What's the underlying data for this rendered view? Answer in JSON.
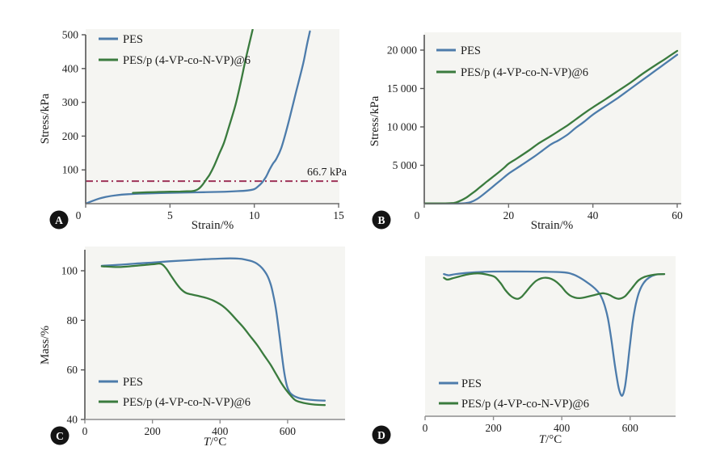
{
  "figure": {
    "background": "#ffffff",
    "panel_labels": [
      "A",
      "B",
      "C",
      "D"
    ]
  },
  "colors": {
    "pes_line": "#4d7cab",
    "composite_line": "#3a7b3e",
    "annotation_line": "#9e3358",
    "axis_dark": "#555555",
    "axis_light": "#8f8f8f",
    "text": "#1c1c1c",
    "plot_background": "#f5f5f2",
    "badge_background": "#141414",
    "badge_text": "#ffffff"
  },
  "legend_labels": {
    "pes": "PES",
    "composite": "PES/p (4-VP-co-N-VP)@6"
  },
  "chart_data": [
    {
      "type": "line",
      "panel_label": "A",
      "xlabel": "Strain/%",
      "ylabel": "Stress/kPa",
      "xlim": [
        0,
        15
      ],
      "ylim": [
        0,
        500
      ],
      "xticks": [
        0,
        5,
        10,
        15
      ],
      "xtick_labels": [
        "0",
        "5",
        "10",
        "15"
      ],
      "yticks": [
        100,
        200,
        300,
        400,
        500
      ],
      "ytick_labels": [
        "100",
        "200",
        "300",
        "400",
        "500"
      ],
      "legend_position": "top-left",
      "grid": false,
      "annotation": {
        "type": "hline",
        "y": 66.7,
        "label": "66.7 kPa",
        "style": "dash-dot"
      },
      "series": [
        {
          "name": "PES",
          "color": "#4d7cab",
          "x": [
            0,
            0.4,
            0.8,
            1.2,
            1.8,
            2.5,
            3.5,
            5,
            6.5,
            8,
            9,
            9.6,
            10,
            10.2,
            10.45,
            10.7,
            10.9,
            11.1,
            11.3,
            11.6,
            12,
            12.5,
            12.9,
            13.1,
            13.3
          ],
          "y": [
            0,
            8,
            15,
            20,
            25,
            28,
            30,
            32,
            33.5,
            35,
            37,
            39,
            43,
            50,
            62,
            80,
            100,
            118,
            132,
            165,
            235,
            335,
            415,
            465,
            510
          ]
        },
        {
          "name": "PES/p (4-VP-co-N-VP)@6",
          "color": "#3a7b3e",
          "x": [
            2.8,
            3.5,
            4.2,
            5,
            5.6,
            6,
            6.3,
            6.5,
            6.7,
            6.9,
            7.1,
            7.35,
            7.6,
            7.9,
            8.2,
            8.5,
            8.9,
            9.2,
            9.5,
            9.9
          ],
          "y": [
            32,
            33.5,
            34.5,
            35.5,
            36,
            36.5,
            37,
            39,
            44,
            54,
            68,
            86,
            110,
            145,
            180,
            228,
            295,
            360,
            430,
            515
          ]
        }
      ]
    },
    {
      "type": "line",
      "panel_label": "B",
      "xlabel": "Strain/%",
      "ylabel": "Stress/kPa",
      "xlim": [
        0,
        60
      ],
      "ylim": [
        0,
        20000
      ],
      "xticks": [
        0,
        20,
        40,
        60
      ],
      "xtick_labels": [
        "0",
        "20",
        "40",
        "60"
      ],
      "yticks": [
        5000,
        10000,
        15000,
        20000
      ],
      "ytick_labels": [
        "5 000",
        "10 000",
        "15 000",
        "20 000"
      ],
      "legend_position": "top-left",
      "grid": false,
      "series": [
        {
          "name": "PES",
          "color": "#4d7cab",
          "x": [
            0,
            8,
            10,
            11,
            12.5,
            14,
            16,
            18,
            20,
            23,
            26,
            28,
            30,
            32,
            34,
            36,
            38,
            40,
            43,
            46,
            49,
            52,
            55,
            57,
            60
          ],
          "y": [
            20,
            20,
            80,
            200,
            600,
            1200,
            2100,
            3000,
            3900,
            5000,
            6100,
            6900,
            7700,
            8300,
            9000,
            9900,
            10700,
            11600,
            12700,
            13800,
            15000,
            16200,
            17400,
            18200,
            19400
          ]
        },
        {
          "name": "PES/p (4-VP-co-N-VP)@6",
          "color": "#3a7b3e",
          "x": [
            0,
            5,
            7,
            8,
            9,
            10,
            11,
            12,
            13,
            14,
            15,
            17,
            19,
            20,
            22,
            25,
            27,
            30,
            32,
            34,
            36,
            38,
            40,
            43,
            46,
            49,
            52,
            55,
            57,
            60
          ],
          "y": [
            30,
            40,
            100,
            250,
            500,
            800,
            1200,
            1600,
            2050,
            2500,
            2950,
            3800,
            4700,
            5200,
            5900,
            7000,
            7800,
            8800,
            9500,
            10200,
            11000,
            11800,
            12550,
            13600,
            14700,
            15800,
            17000,
            18100,
            18800,
            19900
          ]
        }
      ]
    },
    {
      "type": "line",
      "panel_label": "C",
      "xlabel": "T/°C",
      "ylabel": "Mass/%",
      "xlim": [
        0,
        770
      ],
      "ylim": [
        40,
        100
      ],
      "xticks": [
        0,
        200,
        400,
        600
      ],
      "xtick_labels": [
        "0",
        "200",
        "400",
        "600"
      ],
      "yticks": [
        40,
        60,
        80,
        100
      ],
      "ytick_labels": [
        "40",
        "60",
        "80",
        "100"
      ],
      "legend_position": "bottom-left",
      "grid": false,
      "series": [
        {
          "name": "PES",
          "color": "#4d7cab",
          "x": [
            50,
            100,
            150,
            200,
            250,
            300,
            350,
            400,
            430,
            455,
            475,
            495,
            510,
            525,
            540,
            550,
            558,
            566,
            574,
            582,
            590,
            598,
            606,
            615,
            630,
            650,
            680,
            710
          ],
          "y": [
            102,
            102.4,
            102.9,
            103.3,
            103.8,
            104.2,
            104.6,
            104.9,
            105,
            104.9,
            104.5,
            103.8,
            102.8,
            101,
            98,
            94.5,
            90,
            84,
            76,
            67,
            59,
            53.5,
            51,
            49.8,
            48.8,
            48.2,
            47.8,
            47.6
          ]
        },
        {
          "name": "PES/p (4-VP-co-N-VP)@6",
          "color": "#3a7b3e",
          "x": [
            50,
            100,
            150,
            200,
            225,
            240,
            255,
            270,
            285,
            300,
            320,
            340,
            360,
            380,
            400,
            415,
            430,
            450,
            470,
            490,
            510,
            530,
            550,
            565,
            580,
            595,
            610,
            625,
            650,
            680,
            710
          ],
          "y": [
            101.8,
            101.5,
            102,
            102.6,
            102.8,
            101,
            98,
            95,
            92.5,
            91,
            90.3,
            89.7,
            89,
            88,
            86.5,
            85,
            83,
            80,
            77,
            73.5,
            70,
            66,
            62,
            58.5,
            55,
            52,
            49.5,
            47.6,
            46.6,
            46,
            45.8
          ]
        }
      ]
    },
    {
      "type": "line",
      "panel_label": "D",
      "xlabel": "T/°C",
      "ylabel": "",
      "note": "derivative mass loss (DTG), arbitrary units, baseline 0, PES main peak normalized to -1 at 578 °C",
      "xlim": [
        0,
        733
      ],
      "ylim": [
        -1,
        0
      ],
      "xticks": [
        0,
        200,
        400,
        600
      ],
      "xtick_labels": [
        "0",
        "200",
        "400",
        "600"
      ],
      "yticks": [],
      "ytick_labels": [],
      "legend_position": "bottom-left",
      "grid": false,
      "series": [
        {
          "name": "PES",
          "color": "#4d7cab",
          "x": [
            55,
            70,
            90,
            150,
            200,
            300,
            400,
            430,
            450,
            470,
            490,
            505,
            515,
            525,
            535,
            545,
            555,
            565,
            572,
            578,
            585,
            592,
            600,
            608,
            617,
            627,
            640,
            655,
            675,
            700
          ],
          "y": [
            -0.02,
            -0.03,
            -0.02,
            -0.005,
            0,
            0,
            -0.005,
            -0.02,
            -0.045,
            -0.08,
            -0.12,
            -0.16,
            -0.2,
            -0.27,
            -0.38,
            -0.55,
            -0.75,
            -0.92,
            -0.99,
            -1,
            -0.93,
            -0.78,
            -0.58,
            -0.4,
            -0.26,
            -0.16,
            -0.09,
            -0.05,
            -0.025,
            -0.02
          ]
        },
        {
          "name": "PES/p (4-VP-co-N-VP)@6",
          "color": "#3a7b3e",
          "x": [
            55,
            65,
            80,
            100,
            130,
            160,
            190,
            205,
            220,
            235,
            250,
            262,
            272,
            282,
            295,
            310,
            325,
            340,
            355,
            370,
            385,
            400,
            412,
            425,
            438,
            450,
            465,
            480,
            495,
            510,
            520,
            530,
            540,
            550,
            558,
            566,
            575,
            585,
            595,
            605,
            615,
            625,
            640,
            660,
            680,
            700
          ],
          "y": [
            -0.05,
            -0.065,
            -0.055,
            -0.04,
            -0.02,
            -0.015,
            -0.03,
            -0.045,
            -0.09,
            -0.15,
            -0.195,
            -0.215,
            -0.22,
            -0.205,
            -0.165,
            -0.115,
            -0.075,
            -0.055,
            -0.05,
            -0.06,
            -0.085,
            -0.125,
            -0.165,
            -0.195,
            -0.21,
            -0.215,
            -0.21,
            -0.2,
            -0.19,
            -0.18,
            -0.175,
            -0.18,
            -0.19,
            -0.205,
            -0.215,
            -0.22,
            -0.215,
            -0.2,
            -0.17,
            -0.135,
            -0.1,
            -0.07,
            -0.045,
            -0.03,
            -0.022,
            -0.02
          ]
        }
      ]
    }
  ]
}
